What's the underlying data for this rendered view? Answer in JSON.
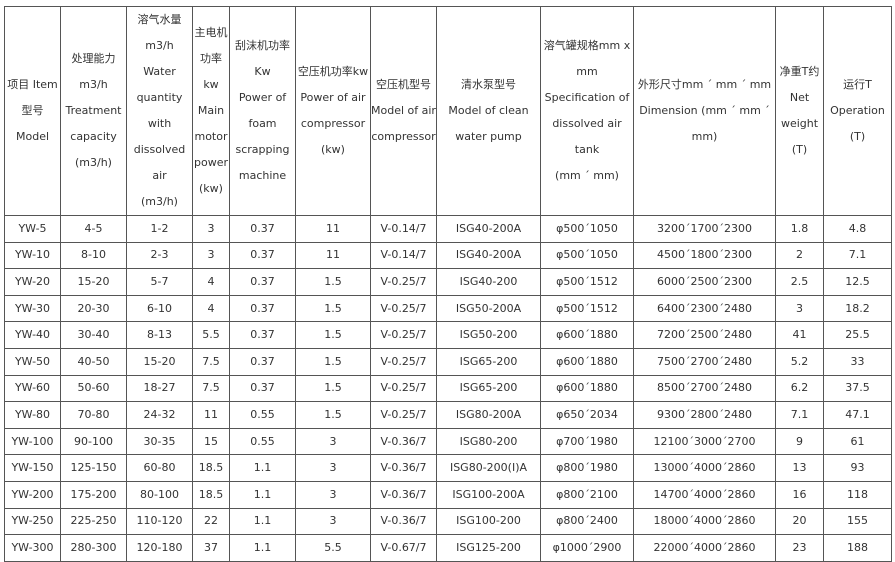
{
  "table": {
    "headers": [
      "项目 Item\n型号\nModel",
      "处理能力\nm3/h\nTreatment\ncapacity\n(m3/h)",
      "溶气水量\nm3/h\nWater\nquantity\nwith\ndissolved air\n(m3/h)",
      "主电机\n功率kw\nMain\nmotor\npower\n(kw)",
      "刮沫机功率\nKw\nPower of\nfoam\nscrapping\nmachine",
      "空压机功率kw\nPower of air\ncompressor\n(kw)",
      "空压机型号\nModel of air\ncompressor",
      "清水泵型号\nModel of clean\nwater pump",
      "溶气罐规格mm x\nmm\nSpecification of\ndissolved air tank\n(mm ´ mm)",
      "外形尺寸mm ´ mm ´ mm\nDimension (mm ´ mm ´ mm)",
      "净重T约\nNet\nweight\n(T)",
      "运行T\nOperation (T)"
    ],
    "rows": [
      [
        "YW-5",
        "4-5",
        "1-2",
        "3",
        "0.37",
        "11",
        "V-0.14/7",
        "ISG40-200A",
        "φ500´1050",
        "3200´1700´2300",
        "1.8",
        "4.8"
      ],
      [
        "YW-10",
        "8-10",
        "2-3",
        "3",
        "0.37",
        "11",
        "V-0.14/7",
        "ISG40-200A",
        "φ500´1050",
        "4500´1800´2300",
        "2",
        "7.1"
      ],
      [
        "YW-20",
        "15-20",
        "5-7",
        "4",
        "0.37",
        "1.5",
        "V-0.25/7",
        "ISG40-200",
        "φ500´1512",
        "6000´2500´2300",
        "2.5",
        "12.5"
      ],
      [
        "YW-30",
        "20-30",
        "6-10",
        "4",
        "0.37",
        "1.5",
        "V-0.25/7",
        "ISG50-200A",
        "φ500´1512",
        "6400´2300´2480",
        "3",
        "18.2"
      ],
      [
        "YW-40",
        "30-40",
        "8-13",
        "5.5",
        "0.37",
        "1.5",
        "V-0.25/7",
        "ISG50-200",
        "φ600´1880",
        "7200´2500´2480",
        "41",
        "25.5"
      ],
      [
        "YW-50",
        "40-50",
        "15-20",
        "7.5",
        "0.37",
        "1.5",
        "V-0.25/7",
        "ISG65-200",
        "φ600´1880",
        "7500´2700´2480",
        "5.2",
        "33"
      ],
      [
        "YW-60",
        "50-60",
        "18-27",
        "7.5",
        "0.37",
        "1.5",
        "V-0.25/7",
        "ISG65-200",
        "φ600´1880",
        "8500´2700´2480",
        "6.2",
        "37.5"
      ],
      [
        "YW-80",
        "70-80",
        "24-32",
        "11",
        "0.55",
        "1.5",
        "V-0.25/7",
        "ISG80-200A",
        "φ650´2034",
        "9300´2800´2480",
        "7.1",
        "47.1"
      ],
      [
        "YW-100",
        "90-100",
        "30-35",
        "15",
        "0.55",
        "3",
        "V-0.36/7",
        "ISG80-200",
        "φ700´1980",
        "12100´3000´2700",
        "9",
        "61"
      ],
      [
        "YW-150",
        "125-150",
        "60-80",
        "18.5",
        "1.1",
        "3",
        "V-0.36/7",
        "ISG80-200(I)A",
        "φ800´1980",
        "13000´4000´2860",
        "13",
        "93"
      ],
      [
        "YW-200",
        "175-200",
        "80-100",
        "18.5",
        "1.1",
        "3",
        "V-0.36/7",
        "ISG100-200A",
        "φ800´2100",
        "14700´4000´2860",
        "16",
        "118"
      ],
      [
        "YW-250",
        "225-250",
        "110-120",
        "22",
        "1.1",
        "3",
        "V-0.36/7",
        "ISG100-200",
        "φ800´2400",
        "18000´4000´2860",
        "20",
        "155"
      ],
      [
        "YW-300",
        "280-300",
        "120-180",
        "37",
        "1.1",
        "5.5",
        "V-0.67/7",
        "ISG125-200",
        "φ1000´2900",
        "22000´4000´2860",
        "23",
        "188"
      ]
    ]
  }
}
